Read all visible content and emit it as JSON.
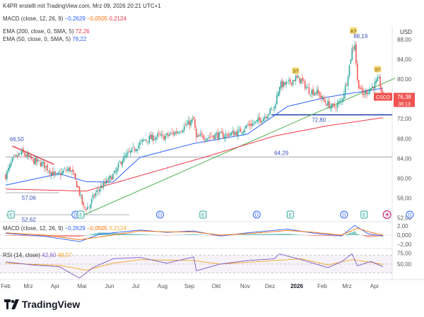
{
  "attribution": "K4PR erstellt mit TradingView.com, Mrz 09, 2026 20:21 UTC+1",
  "branding": "TradingView",
  "currency": "USD",
  "ticker_badge": {
    "symbol": "CSCO",
    "price": "76,38",
    "countdown": "38:13"
  },
  "legend": {
    "macd": {
      "label": "MACD (close, 12, 26, 9)",
      "v1": "−0,2629",
      "v2": "−0,0505",
      "v3": "0,2124"
    },
    "ema200": {
      "label": "EMA (200, close, 0, SMA, 5)",
      "value": "72,26"
    },
    "ema50": {
      "label": "EMA (50, close, 0, SMA, 5)",
      "value": "78,22"
    },
    "macd_pane": {
      "label": "MACD (close, 12, 26, 9)",
      "v1": "−0,2629",
      "v2": "−0,0505",
      "v3": "0,2124"
    },
    "rsi": {
      "label": "RSI (14, close)",
      "v1": "42,60",
      "v2": "48,57"
    }
  },
  "colors": {
    "up": "#26a69a",
    "down": "#ef5350",
    "ema200": "#f23645",
    "ema50": "#2962ff",
    "trend": "#4caf50",
    "hline": "#1e3ea8",
    "rsi": "#7e57c2",
    "signal": "#ff9800",
    "label_price": "#3f51b5"
  },
  "chart_data": [
    {
      "type": "candlestick",
      "title": "CSCO",
      "x_tick_labels": [
        "Feb",
        "Mrz",
        "Apr",
        "Mai",
        "Jun",
        "Jul",
        "Aug",
        "Sep",
        "Okt",
        "Nov",
        "Dez",
        "2026",
        "Feb",
        "Mrz",
        "Apr"
      ],
      "y_tick_labels": [
        "88,00",
        "84,00",
        "80,00",
        "76,00",
        "72,00",
        "68,00",
        "64,00",
        "60,00",
        "56,00",
        "52,00"
      ],
      "ylim": [
        51.5,
        90
      ],
      "close_anchors": [
        [
          0,
          60.5
        ],
        [
          5,
          63.5
        ],
        [
          12,
          65.2
        ],
        [
          20,
          63.6
        ],
        [
          28,
          62.8
        ],
        [
          34,
          61.2
        ],
        [
          38,
          60.4
        ],
        [
          44,
          61.5
        ],
        [
          48,
          61.8
        ],
        [
          50,
          60.8
        ],
        [
          54,
          58.0
        ],
        [
          58,
          54.0
        ],
        [
          62,
          54.2
        ],
        [
          66,
          56.5
        ],
        [
          70,
          58.0
        ],
        [
          76,
          59.4
        ],
        [
          82,
          61.2
        ],
        [
          86,
          63.5
        ],
        [
          92,
          65.0
        ],
        [
          98,
          66.5
        ],
        [
          104,
          67.8
        ],
        [
          110,
          68.2
        ],
        [
          114,
          68.5
        ],
        [
          118,
          68.3
        ],
        [
          124,
          69.0
        ],
        [
          128,
          69.5
        ],
        [
          132,
          70.2
        ],
        [
          136,
          71.0
        ],
        [
          140,
          71.8
        ],
        [
          142,
          68.0
        ],
        [
          146,
          68.5
        ],
        [
          150,
          68.3
        ],
        [
          156,
          68.7
        ],
        [
          162,
          68.6
        ],
        [
          168,
          69.0
        ],
        [
          174,
          69.4
        ],
        [
          180,
          70.6
        ],
        [
          186,
          71.2
        ],
        [
          192,
          72.3
        ],
        [
          198,
          73.8
        ],
        [
          200,
          74.3
        ],
        [
          204,
          78.8
        ],
        [
          210,
          79.0
        ],
        [
          216,
          80.2
        ],
        [
          220,
          79.8
        ],
        [
          226,
          77.6
        ],
        [
          232,
          77.4
        ],
        [
          238,
          75.3
        ],
        [
          244,
          74.2
        ],
        [
          250,
          75.5
        ],
        [
          254,
          79.5
        ],
        [
          258,
          86.0
        ],
        [
          260,
          87.2
        ],
        [
          262,
          79.6
        ],
        [
          266,
          76.8
        ],
        [
          272,
          78.2
        ],
        [
          278,
          79.8
        ],
        [
          281,
          76.4
        ]
      ],
      "candle_count": 282,
      "ema200_anchors": [
        [
          0,
          57.8
        ],
        [
          60,
          57.4
        ],
        [
          100,
          60.5
        ],
        [
          150,
          64.4
        ],
        [
          200,
          68.5
        ],
        [
          240,
          70.6
        ],
        [
          282,
          72.26
        ]
      ],
      "ema50_anchors": [
        [
          0,
          58.6
        ],
        [
          40,
          60.9
        ],
        [
          60,
          59.3
        ],
        [
          80,
          59.2
        ],
        [
          100,
          64.2
        ],
        [
          140,
          67.0
        ],
        [
          180,
          68.9
        ],
        [
          210,
          74.5
        ],
        [
          240,
          76.4
        ],
        [
          282,
          78.22
        ]
      ],
      "trendline": {
        "from": [
          55,
          52.2
        ],
        "to": [
          290,
          80.2
        ]
      },
      "horizontal_lines": [
        {
          "price": 72.8,
          "from_bar": 198,
          "to_bar": 295,
          "label": "72,80"
        },
        {
          "price": 64.29,
          "from_bar": 0,
          "to_bar": 295,
          "label": "64,29"
        },
        {
          "price": 57.06,
          "from_bar": 0,
          "to_bar": 40,
          "label": "57,06"
        },
        {
          "price": 52.62,
          "from_bar": 0,
          "to_bar": 92,
          "label": "52,62"
        }
      ],
      "downtrend": {
        "from": [
          5,
          66.5
        ],
        "to": [
          36,
          62.8
        ]
      },
      "price_labels": [
        {
          "text": "66,50",
          "bar": 2,
          "price": 67.5
        },
        {
          "text": "88,19",
          "bar": 258,
          "price": 88.3
        }
      ],
      "markers": [
        {
          "kind": "K",
          "text": "K?",
          "bar": 259,
          "price": 89.6
        },
        {
          "kind": "S",
          "text": "S?",
          "bar": 216,
          "price": 81.5
        },
        {
          "kind": "S",
          "text": "S?",
          "bar": 277,
          "price": 81.8
        }
      ],
      "events": [
        {
          "type": "E",
          "bar": 4
        },
        {
          "type": "D",
          "bar": 52
        },
        {
          "type": "E",
          "bar": 56
        },
        {
          "type": "D",
          "bar": 115
        },
        {
          "type": "E",
          "bar": 147
        },
        {
          "type": "D",
          "bar": 187
        },
        {
          "type": "E",
          "bar": 212
        },
        {
          "type": "D",
          "bar": 252
        },
        {
          "type": "E",
          "bar": 267
        },
        {
          "type": "SPLIT",
          "bar": 284
        },
        {
          "type": "D",
          "bar": 301
        }
      ],
      "last_price": 76.38
    },
    {
      "type": "macd",
      "title": "MACD (close, 12, 26, 9)",
      "y_tick_labels": [
        "2,00",
        "0,000",
        "−2,00"
      ],
      "ylim": [
        -2.6,
        2.6
      ],
      "macd_anchors": [
        [
          0,
          0.4
        ],
        [
          30,
          -0.3
        ],
        [
          55,
          -1.4
        ],
        [
          70,
          0.2
        ],
        [
          100,
          1.1
        ],
        [
          120,
          0.6
        ],
        [
          140,
          0.9
        ],
        [
          160,
          -0.2
        ],
        [
          180,
          0.5
        ],
        [
          210,
          1.3
        ],
        [
          230,
          0.4
        ],
        [
          250,
          -0.2
        ],
        [
          260,
          2.1
        ],
        [
          270,
          0.3
        ],
        [
          282,
          -0.26
        ]
      ],
      "signal_anchors": [
        [
          0,
          0.5
        ],
        [
          30,
          0.0
        ],
        [
          55,
          -1.0
        ],
        [
          70,
          -0.4
        ],
        [
          100,
          0.9
        ],
        [
          120,
          0.7
        ],
        [
          140,
          0.7
        ],
        [
          160,
          0.0
        ],
        [
          180,
          0.3
        ],
        [
          210,
          1.0
        ],
        [
          230,
          0.6
        ],
        [
          250,
          0.0
        ],
        [
          262,
          1.5
        ],
        [
          272,
          0.6
        ],
        [
          282,
          -0.05
        ]
      ]
    },
    {
      "type": "rsi",
      "title": "RSI (14, close)",
      "y_tick_labels": [
        "75,00",
        "50,00"
      ],
      "ylim": [
        18,
        82
      ],
      "band": [
        30,
        70
      ],
      "rsi_anchors": [
        [
          0,
          55
        ],
        [
          20,
          48
        ],
        [
          40,
          44
        ],
        [
          55,
          18
        ],
        [
          65,
          42
        ],
        [
          80,
          62
        ],
        [
          100,
          65
        ],
        [
          120,
          52
        ],
        [
          140,
          66
        ],
        [
          142,
          35
        ],
        [
          160,
          50
        ],
        [
          180,
          58
        ],
        [
          200,
          62
        ],
        [
          204,
          73
        ],
        [
          220,
          60
        ],
        [
          240,
          42
        ],
        [
          250,
          55
        ],
        [
          258,
          73
        ],
        [
          262,
          46
        ],
        [
          272,
          56
        ],
        [
          282,
          42.6
        ]
      ],
      "rsi_ma_anchors": [
        [
          0,
          52
        ],
        [
          40,
          47
        ],
        [
          60,
          36
        ],
        [
          80,
          52
        ],
        [
          100,
          60
        ],
        [
          140,
          58
        ],
        [
          160,
          50
        ],
        [
          200,
          58
        ],
        [
          220,
          62
        ],
        [
          240,
          48
        ],
        [
          258,
          60
        ],
        [
          272,
          54
        ],
        [
          282,
          48.57
        ]
      ]
    }
  ]
}
